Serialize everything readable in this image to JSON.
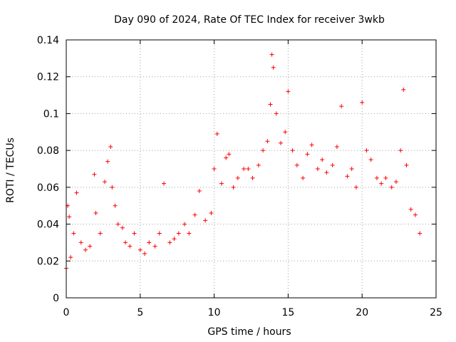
{
  "chart_data": {
    "type": "scatter",
    "title": "Day 090 of 2024, Rate Of TEC Index for receiver 3wkb",
    "xlabel": "GPS time / hours",
    "ylabel": "ROTI / TECUs",
    "xlim": [
      0,
      25
    ],
    "ylim": [
      0,
      0.14
    ],
    "x_ticks": [
      0,
      5,
      10,
      15,
      20,
      25
    ],
    "x_tick_labels": [
      "0",
      "5",
      "10",
      "15",
      "20",
      "25"
    ],
    "y_ticks": [
      0,
      0.02,
      0.04,
      0.06,
      0.08,
      0.1,
      0.12,
      0.14
    ],
    "y_tick_labels": [
      "0",
      "0.02",
      "0.04",
      "0.06",
      "0.08",
      "0.1",
      "0.12",
      "0.14"
    ],
    "grid": true,
    "legend": "none",
    "marker": "+",
    "color": "#ff0000",
    "series": [
      {
        "x": [
          0.0,
          0.1,
          0.2,
          0.3,
          0.5,
          0.7,
          1.0,
          1.3,
          1.6,
          1.9,
          2.0,
          2.3,
          2.6,
          2.8,
          3.0,
          3.1,
          3.3,
          3.5,
          3.8,
          4.0,
          4.3,
          4.6,
          5.0,
          5.3,
          5.6,
          6.0,
          6.3,
          6.6,
          7.0,
          7.3,
          7.6,
          8.0,
          8.3,
          8.7,
          9.0,
          9.4,
          9.8,
          10.0,
          10.2,
          10.5,
          10.8,
          11.0,
          11.3,
          11.6,
          12.0,
          12.3,
          12.6,
          13.0,
          13.3,
          13.6,
          13.8,
          13.9,
          14.0,
          14.2,
          14.5,
          14.8,
          15.0,
          15.3,
          15.6,
          16.0,
          16.3,
          16.6,
          17.0,
          17.3,
          17.6,
          18.0,
          18.3,
          18.6,
          19.0,
          19.3,
          19.6,
          20.0,
          20.3,
          20.6,
          21.0,
          21.3,
          21.6,
          22.0,
          22.3,
          22.6,
          22.8,
          23.0,
          23.3,
          23.6,
          23.9
        ],
        "y": [
          0.016,
          0.05,
          0.044,
          0.022,
          0.035,
          0.057,
          0.03,
          0.026,
          0.028,
          0.067,
          0.046,
          0.035,
          0.063,
          0.074,
          0.082,
          0.06,
          0.05,
          0.04,
          0.038,
          0.03,
          0.028,
          0.035,
          0.026,
          0.024,
          0.03,
          0.028,
          0.035,
          0.062,
          0.03,
          0.032,
          0.035,
          0.04,
          0.035,
          0.045,
          0.058,
          0.042,
          0.046,
          0.07,
          0.089,
          0.062,
          0.076,
          0.078,
          0.06,
          0.065,
          0.07,
          0.07,
          0.065,
          0.072,
          0.08,
          0.085,
          0.105,
          0.132,
          0.125,
          0.1,
          0.084,
          0.09,
          0.112,
          0.08,
          0.072,
          0.065,
          0.078,
          0.083,
          0.07,
          0.075,
          0.068,
          0.072,
          0.082,
          0.104,
          0.066,
          0.07,
          0.06,
          0.106,
          0.08,
          0.075,
          0.065,
          0.062,
          0.065,
          0.06,
          0.063,
          0.08,
          0.113,
          0.072,
          0.048,
          0.045,
          0.035
        ]
      }
    ]
  }
}
